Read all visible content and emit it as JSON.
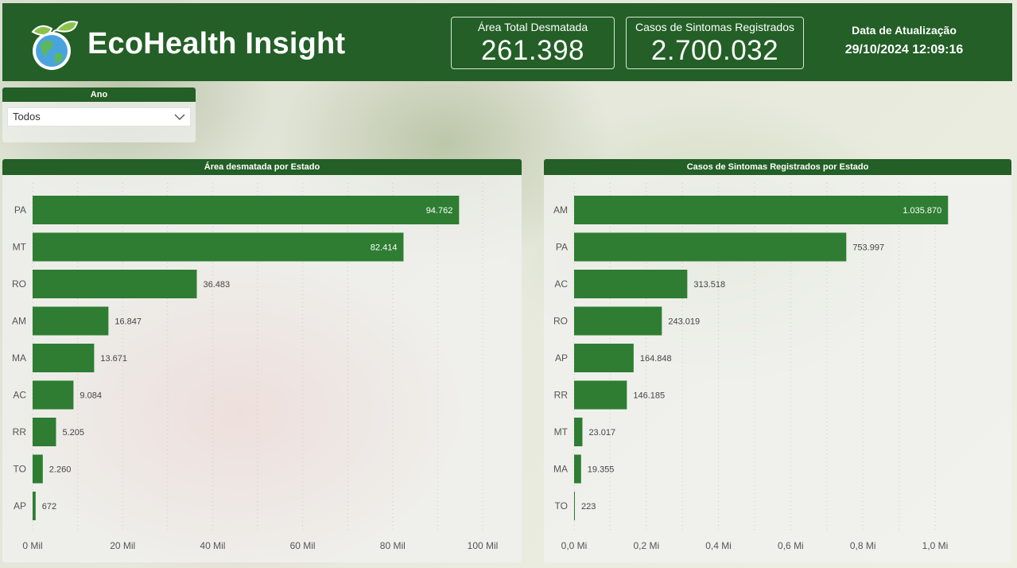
{
  "header": {
    "title": "EcoHealth Insight",
    "kpi_area": {
      "label": "Área Total Desmatada",
      "value": "261.398"
    },
    "kpi_cases": {
      "label": "Casos de Sintomas Registrados",
      "value": "2.700.032"
    },
    "update": {
      "label": "Data de Atualização",
      "value": "29/10/2024 12:09:16"
    }
  },
  "slicer": {
    "title": "Ano",
    "selected": "Todos"
  },
  "colors": {
    "brand": "#235f26",
    "bar": "#2e7d32"
  },
  "chart_data": [
    {
      "type": "bar",
      "orientation": "horizontal",
      "title": "Área desmatada por Estado",
      "categories": [
        "PA",
        "MT",
        "RO",
        "AM",
        "MA",
        "AC",
        "RR",
        "TO",
        "AP"
      ],
      "values": [
        94762,
        82414,
        36483,
        16847,
        13671,
        9084,
        5205,
        2260,
        672
      ],
      "value_labels": [
        "94.762",
        "82.414",
        "36.483",
        "16.847",
        "13.671",
        "9.084",
        "5.205",
        "2.260",
        "672"
      ],
      "xlim": [
        0,
        100000
      ],
      "ticks": [
        0,
        20000,
        40000,
        60000,
        80000,
        100000
      ],
      "tick_labels": [
        "0 Mil",
        "20 Mil",
        "40 Mil",
        "60 Mil",
        "80 Mil",
        "100 Mil"
      ],
      "grid": true
    },
    {
      "type": "bar",
      "orientation": "horizontal",
      "title": "Casos de Sintomas Registrados por Estado",
      "categories": [
        "AM",
        "PA",
        "AC",
        "RO",
        "AP",
        "RR",
        "MT",
        "MA",
        "TO"
      ],
      "values": [
        1035870,
        753997,
        313518,
        243019,
        164848,
        146185,
        23017,
        19355,
        223
      ],
      "value_labels": [
        "1.035.870",
        "753.997",
        "313.518",
        "243.019",
        "164.848",
        "146.185",
        "23.017",
        "19.355",
        "223"
      ],
      "xlim": [
        0,
        1000000
      ],
      "ticks": [
        0,
        200000,
        400000,
        600000,
        800000,
        1000000
      ],
      "tick_labels": [
        "0,0 Mi",
        "0,2 Mi",
        "0,4 Mi",
        "0,6 Mi",
        "0,8 Mi",
        "1,0 Mi"
      ],
      "grid": true
    }
  ]
}
